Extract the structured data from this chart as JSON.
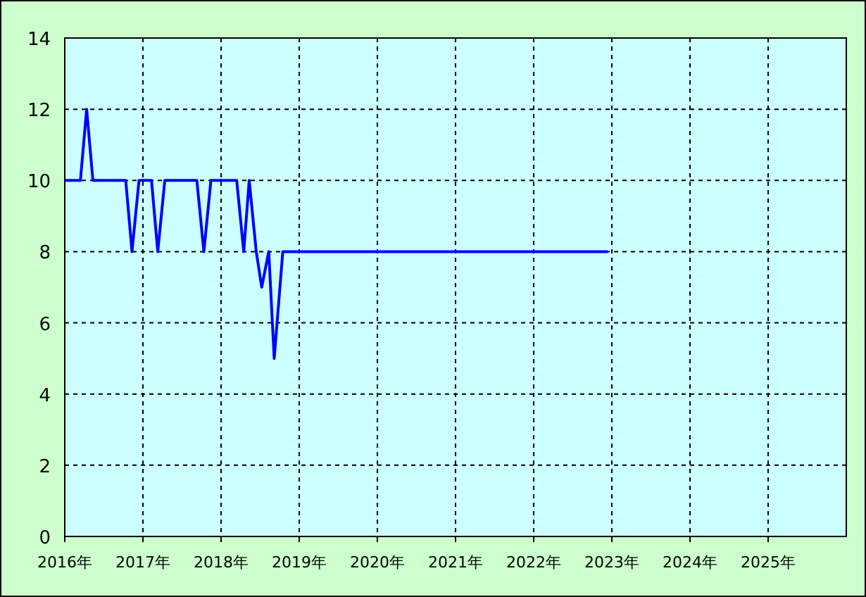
{
  "chart_data": {
    "type": "line",
    "x": [
      2016.0,
      2016.2,
      2016.28,
      2016.36,
      2016.78,
      2016.86,
      2016.95,
      2017.11,
      2017.19,
      2017.28,
      2017.69,
      2017.78,
      2017.87,
      2018.2,
      2018.29,
      2018.36,
      2018.45,
      2018.52,
      2018.61,
      2018.68,
      2018.79,
      2022.95
    ],
    "series": [
      {
        "color": "#0000ff",
        "values": [
          10,
          10,
          12,
          10,
          10,
          8,
          10,
          10,
          8,
          10,
          10,
          8,
          10,
          10,
          8,
          10,
          8,
          7,
          8,
          5,
          8,
          8
        ]
      }
    ],
    "xlim": [
      2016,
      2026
    ],
    "ylim": [
      0,
      14
    ],
    "xticks": [
      {
        "value": 2016,
        "label": "2016年"
      },
      {
        "value": 2017,
        "label": "2017年"
      },
      {
        "value": 2018,
        "label": "2018年"
      },
      {
        "value": 2019,
        "label": "2019年"
      },
      {
        "value": 2020,
        "label": "2020年"
      },
      {
        "value": 2021,
        "label": "2021年"
      },
      {
        "value": 2022,
        "label": "2022年"
      },
      {
        "value": 2023,
        "label": "2023年"
      },
      {
        "value": 2024,
        "label": "2024年"
      },
      {
        "value": 2025,
        "label": "2025年"
      }
    ],
    "yticks": [
      0,
      2,
      4,
      6,
      8,
      10,
      12,
      14
    ],
    "grid": true
  }
}
